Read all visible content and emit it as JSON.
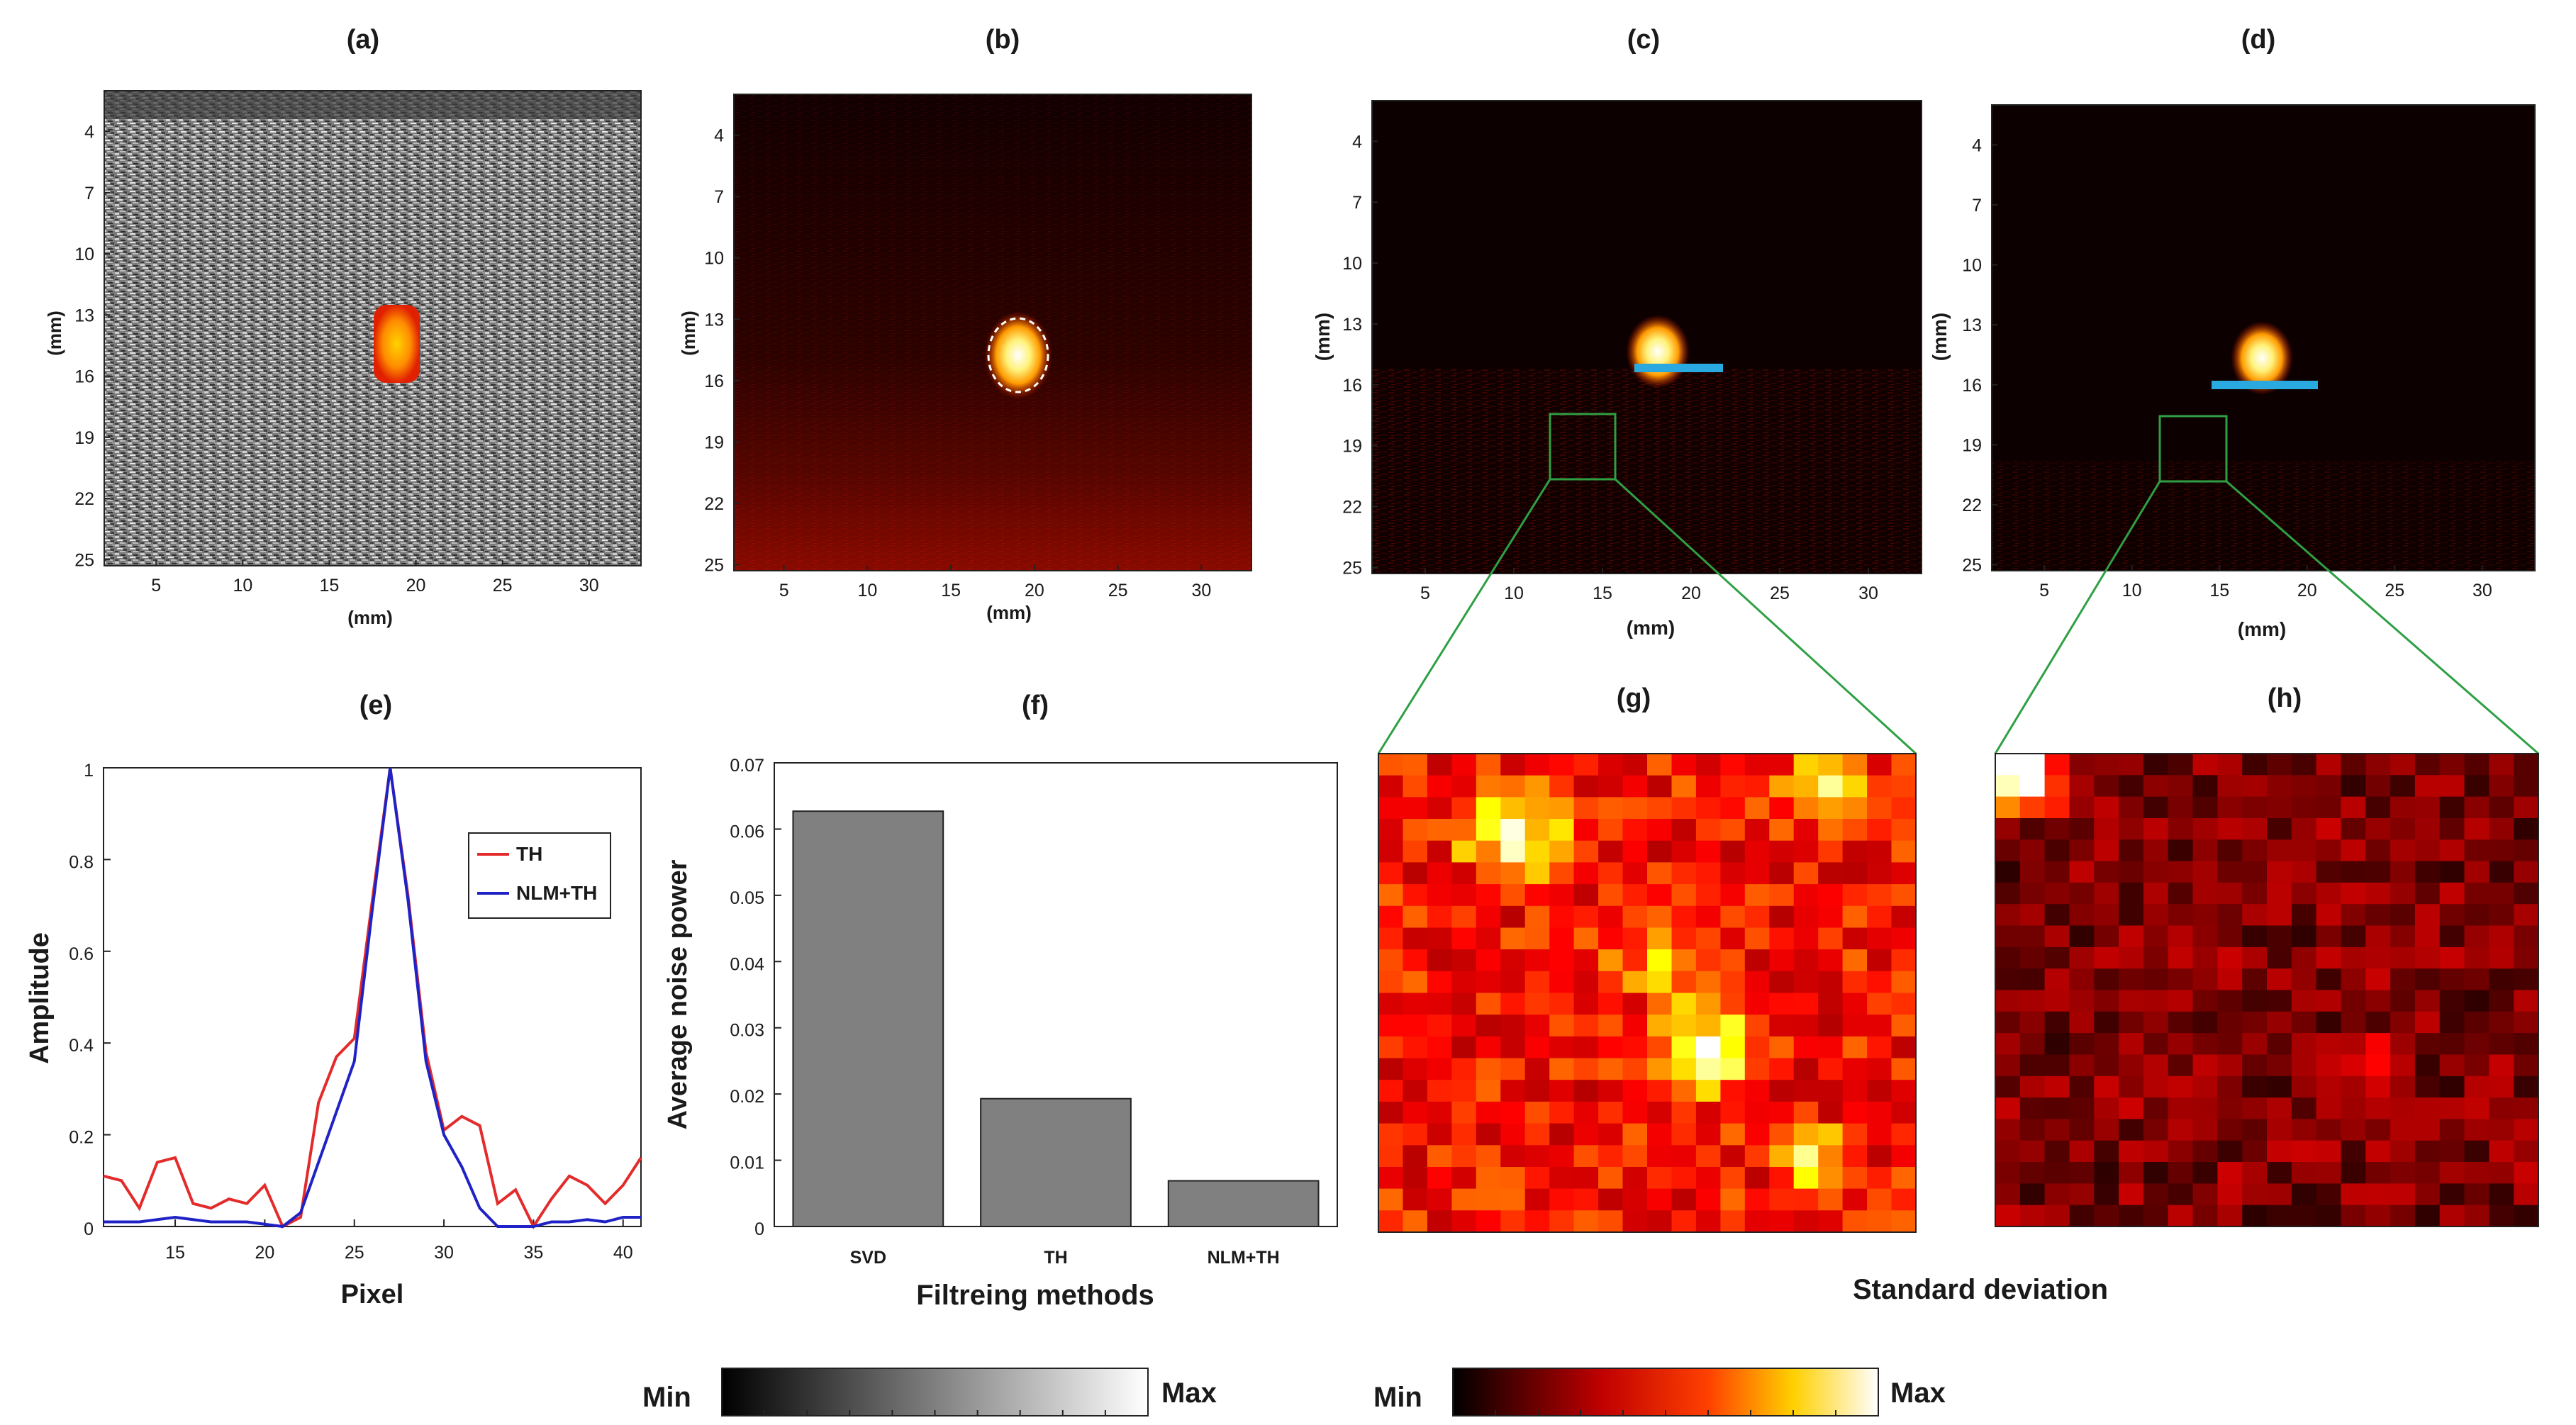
{
  "chart_data": [
    {
      "id": "a",
      "title": "(a)",
      "type": "heatmap",
      "description_colormap": "gray",
      "xlabel": "(mm)",
      "ylabel": "(mm)",
      "xticks": [
        5,
        10,
        15,
        20,
        25,
        30
      ],
      "yticks": [
        4,
        7,
        10,
        13,
        16,
        19,
        22,
        25
      ],
      "xlim": [
        2,
        33
      ],
      "ylim": [
        2,
        25.3
      ]
    },
    {
      "id": "b",
      "title": "(b)",
      "type": "heatmap",
      "xlabel": "(mm)",
      "ylabel": "(mm)",
      "xticks": [
        5,
        10,
        15,
        20,
        25,
        30
      ],
      "yticks": [
        4,
        7,
        10,
        13,
        16,
        19,
        22,
        25
      ],
      "xlim": [
        2,
        33
      ],
      "ylim": [
        2,
        25.3
      ]
    },
    {
      "id": "c",
      "title": "(c)",
      "type": "heatmap",
      "xlabel": "(mm)",
      "ylabel": "(mm)",
      "xticks": [
        5,
        10,
        15,
        20,
        25,
        30
      ],
      "yticks": [
        4,
        7,
        10,
        13,
        16,
        19,
        22,
        25
      ],
      "xlim": [
        2,
        33
      ],
      "ylim": [
        2,
        25.3
      ]
    },
    {
      "id": "d",
      "title": "(d)",
      "type": "heatmap",
      "xlabel": "(mm)",
      "ylabel": "(mm)",
      "xticks": [
        5,
        10,
        15,
        20,
        25,
        30
      ],
      "yticks": [
        4,
        7,
        10,
        13,
        16,
        19,
        22,
        25
      ],
      "xlim": [
        2,
        33
      ],
      "ylim": [
        2,
        25.3
      ]
    },
    {
      "id": "e",
      "title": "(e)",
      "type": "line",
      "xlabel": "Pixel",
      "ylabel": "Amplitude",
      "xlim": [
        11,
        41
      ],
      "ylim": [
        0,
        1
      ],
      "xticks": [
        15,
        20,
        25,
        30,
        35,
        40
      ],
      "yticks": [
        0,
        0.2,
        0.4,
        0.6,
        0.8,
        1
      ],
      "ytick_labels": [
        "0",
        "0.2",
        "0.4",
        "0.6",
        "0.8",
        "1"
      ],
      "x": [
        11,
        12,
        13,
        14,
        15,
        16,
        17,
        18,
        19,
        20,
        21,
        22,
        23,
        24,
        25,
        26,
        27,
        28,
        29,
        30,
        31,
        32,
        33,
        34,
        35,
        36,
        37,
        38,
        39,
        40,
        41
      ],
      "series": [
        {
          "name": "TH",
          "color": "#e32b2b",
          "values": [
            0.11,
            0.1,
            0.04,
            0.14,
            0.15,
            0.05,
            0.04,
            0.06,
            0.05,
            0.09,
            0.0,
            0.02,
            0.27,
            0.37,
            0.41,
            0.71,
            1.0,
            0.72,
            0.38,
            0.21,
            0.24,
            0.22,
            0.05,
            0.08,
            0.0,
            0.06,
            0.11,
            0.09,
            0.05,
            0.09,
            0.15
          ]
        },
        {
          "name": "NLM+TH",
          "color": "#1f22c4",
          "values": [
            0.01,
            0.01,
            0.01,
            0.015,
            0.02,
            0.015,
            0.01,
            0.01,
            0.01,
            0.005,
            0.0,
            0.03,
            0.14,
            0.25,
            0.36,
            0.69,
            1.0,
            0.71,
            0.36,
            0.2,
            0.13,
            0.04,
            0.0,
            0.0,
            0.0,
            0.01,
            0.01,
            0.015,
            0.01,
            0.02,
            0.02
          ]
        }
      ]
    },
    {
      "id": "f",
      "title": "(f)",
      "type": "bar",
      "xlabel": "Filtreing methods",
      "ylabel": "Average noise power",
      "categories": [
        "SVD",
        "TH",
        "NLM+TH"
      ],
      "values": [
        0.0627,
        0.0193,
        0.0069
      ],
      "ylim": [
        0,
        0.07
      ],
      "yticks": [
        0,
        0.01,
        0.02,
        0.03,
        0.04,
        0.05,
        0.06,
        0.07
      ],
      "ytick_labels": [
        "0",
        "0.01",
        "0.02",
        "0.03",
        "0.04",
        "0.05",
        "0.06",
        "0.07"
      ],
      "bar_color": "#808080"
    },
    {
      "id": "g",
      "title": "(g)",
      "type": "heatmap",
      "note": "zoomed noise region of (c)"
    },
    {
      "id": "h",
      "title": "(h)",
      "type": "heatmap",
      "note": "zoomed noise region of (d)"
    }
  ],
  "caption_gh": "Standard deviation",
  "colorbars": {
    "gray": {
      "min": "Min",
      "max": "Max"
    },
    "hot": {
      "min": "Min",
      "max": "Max"
    }
  },
  "colors": {
    "zoom_lines": "#2ea043",
    "profile_line": "#29a9e0"
  }
}
